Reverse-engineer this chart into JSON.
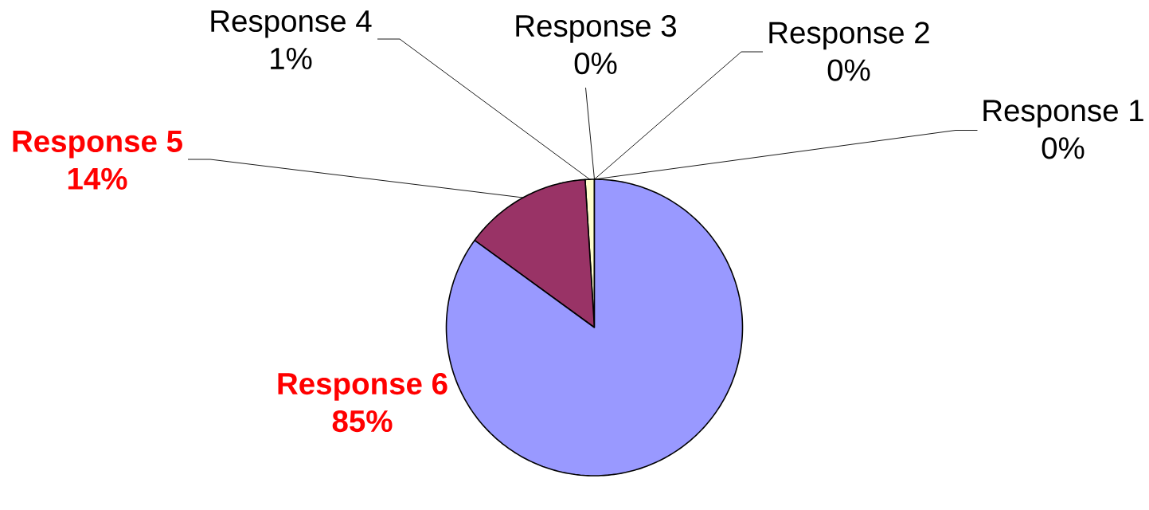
{
  "chart_data": {
    "type": "pie",
    "categories": [
      "Response 1",
      "Response 2",
      "Response 3",
      "Response 4",
      "Response 5",
      "Response 6"
    ],
    "values": [
      0,
      0,
      0,
      1,
      14,
      85
    ],
    "value_labels": [
      "0%",
      "0%",
      "0%",
      "1%",
      "14%",
      "85%"
    ],
    "colors": [
      "#ff8080",
      "#660066",
      "#ccffff",
      "#ffffcc",
      "#993366",
      "#9999ff"
    ]
  }
}
